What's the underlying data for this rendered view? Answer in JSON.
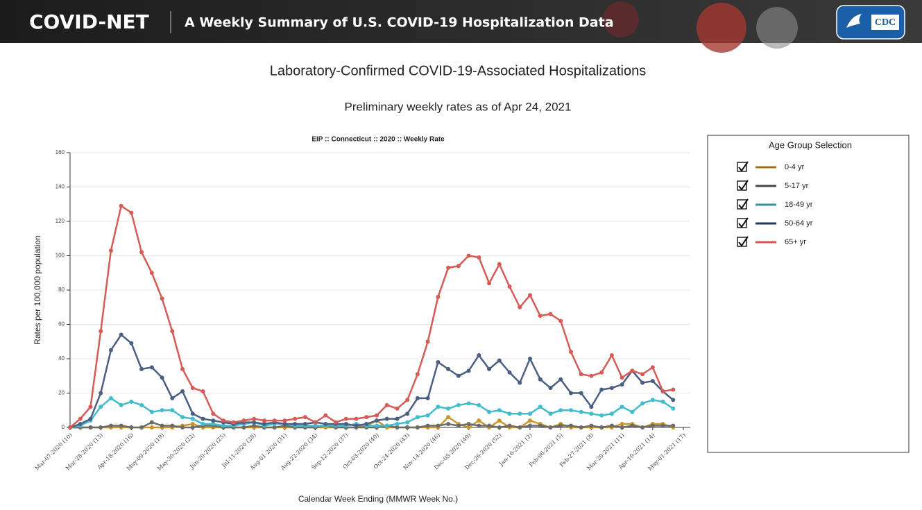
{
  "header": {
    "brand": "COVID-NET",
    "tagline": "A Weekly Summary of U.S. COVID-19 Hospitalization Data",
    "logo": "CDC"
  },
  "page_title": "Laboratory-Confirmed COVID-19-Associated Hospitalizations",
  "page_subtitle": "Preliminary weekly rates as of Apr 24, 2021",
  "legend_title": "Age Group Selection",
  "chart_data": {
    "type": "line",
    "title": "EIP :: Connecticut :: 2020 :: Weekly Rate",
    "x_label": "Calendar Week Ending (MMWR Week No.)",
    "y_label": "Rates per 100,000 population",
    "ylim": [
      0,
      160
    ],
    "yticks": [
      0,
      20,
      40,
      60,
      80,
      100,
      120,
      140,
      160
    ],
    "grid": true,
    "categories": [
      "Mar-07-2020 (10)",
      null,
      null,
      "Mar-28-2020 (13)",
      null,
      null,
      "Apr-18-2020 (16)",
      null,
      null,
      "May-09-2020 (19)",
      null,
      null,
      "May-30-2020 (22)",
      null,
      null,
      "Jun-20-2020 (25)",
      null,
      null,
      "Jul-11-2020 (28)",
      null,
      null,
      "Aug-01-2020 (31)",
      null,
      null,
      "Aug-22-2020 (34)",
      null,
      null,
      "Sep-12-2020 (37)",
      null,
      null,
      "Oct-03-2020 (40)",
      null,
      null,
      "Oct-24-2020 (43)",
      null,
      null,
      "Nov-14-2020 (46)",
      null,
      null,
      "Dec-05-2020 (49)",
      null,
      null,
      "Dec-26-2020 (52)",
      null,
      null,
      "Jan-16-2021 (2)",
      null,
      null,
      "Feb-06-2021 (5)",
      null,
      null,
      "Feb-27-2021 (8)",
      null,
      null,
      "Mar-20-2021 (11)",
      null,
      null,
      "Apr-10-2021 (14)",
      null,
      null,
      "May-01-2021 (17)"
    ],
    "series": [
      {
        "name": "0-4 yr",
        "color": "#c9962e",
        "legend_color": "#a0711f",
        "values": [
          0,
          0,
          0,
          0,
          0,
          0,
          0,
          0,
          0,
          0,
          0,
          1,
          2,
          0,
          0,
          0,
          0,
          0,
          0,
          0,
          0,
          0,
          0,
          0,
          0,
          0,
          0,
          0,
          0,
          1,
          4,
          0,
          0,
          0,
          0,
          0,
          0,
          6,
          2,
          0,
          4,
          0,
          4,
          0,
          0,
          4,
          2,
          0,
          2,
          0,
          0,
          0,
          0,
          0,
          2,
          2,
          0,
          2,
          2,
          0,
          null
        ]
      },
      {
        "name": "5-17 yr",
        "color": "#6b6b6b",
        "legend_color": "#444444",
        "values": [
          0,
          0,
          0,
          0,
          1,
          1,
          0,
          0,
          3,
          1,
          1,
          0,
          0,
          1,
          1,
          0,
          0,
          0,
          1,
          0,
          0,
          1,
          0,
          0,
          0,
          1,
          0,
          0,
          0,
          0,
          0,
          1,
          0,
          0,
          0,
          1,
          1,
          2,
          1,
          2,
          1,
          1,
          0,
          1,
          0,
          1,
          1,
          0,
          1,
          1,
          0,
          1,
          0,
          1,
          0,
          1,
          0,
          1,
          1,
          1,
          null
        ]
      },
      {
        "name": "18-49 yr",
        "color": "#40bccd",
        "legend_color": "#2b95a8",
        "values": [
          0,
          1,
          4,
          12,
          17,
          13,
          15,
          13,
          9,
          10,
          10,
          6,
          5,
          2,
          2,
          1,
          1,
          2,
          3,
          1,
          2,
          2,
          1,
          1,
          1,
          1,
          1,
          1,
          2,
          1,
          1,
          1,
          2,
          3,
          6,
          7,
          12,
          11,
          13,
          14,
          13,
          9,
          10,
          8,
          8,
          8,
          12,
          8,
          10,
          10,
          9,
          8,
          7,
          8,
          12,
          9,
          14,
          16,
          15,
          11,
          null
        ]
      },
      {
        "name": "50-64 yr",
        "color": "#4a5f82",
        "legend_color": "#23395d",
        "values": [
          0,
          2,
          5,
          20,
          45,
          54,
          49,
          34,
          35,
          29,
          17,
          21,
          8,
          5,
          4,
          3,
          2,
          3,
          3,
          2,
          3,
          2,
          2,
          2,
          3,
          2,
          2,
          2,
          1,
          2,
          4,
          5,
          5,
          8,
          17,
          17,
          38,
          34,
          30,
          33,
          42,
          34,
          39,
          32,
          26,
          40,
          28,
          23,
          28,
          20,
          20,
          12,
          22,
          23,
          25,
          33,
          26,
          27,
          21,
          16,
          null
        ]
      },
      {
        "name": "65+ yr",
        "color": "#d65a55",
        "legend_color": "#d9534f",
        "values": [
          0,
          5,
          12,
          56,
          103,
          129,
          125,
          102,
          90,
          75,
          56,
          34,
          23,
          21,
          8,
          4,
          3,
          4,
          5,
          4,
          4,
          4,
          5,
          6,
          3,
          7,
          3,
          5,
          5,
          6,
          7,
          13,
          11,
          16,
          31,
          50,
          76,
          93,
          94,
          100,
          99,
          84,
          95,
          82,
          70,
          77,
          65,
          66,
          62,
          44,
          31,
          30,
          32,
          42,
          29,
          33,
          31,
          35,
          21,
          22,
          null
        ]
      }
    ]
  }
}
